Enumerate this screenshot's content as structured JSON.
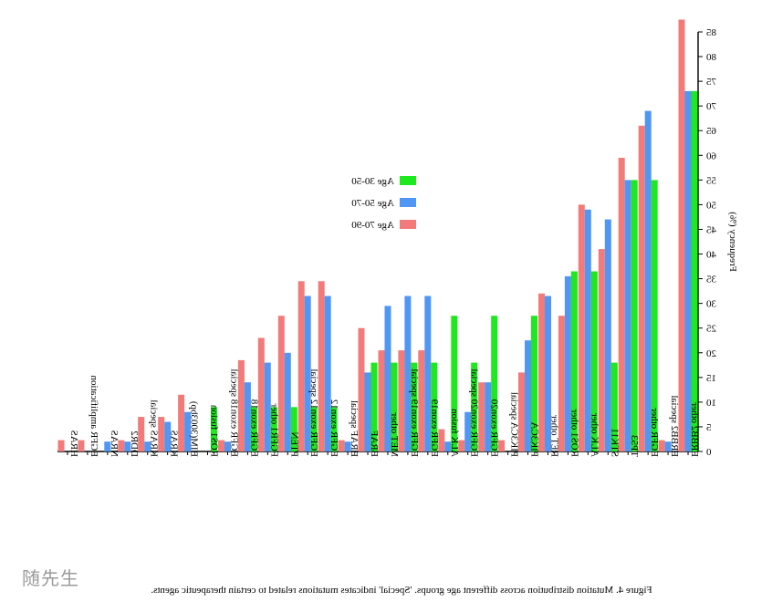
{
  "chart_data": {
    "type": "bar",
    "orientation": "mirrored",
    "caption": "Figure 4. Mutation distribution across different age groups. 'Special' indicates mutations related to certain therapeutic agents.",
    "ylabel": "Frequency (%)",
    "ylim": [
      0,
      85
    ],
    "yticks": [
      0,
      5,
      10,
      15,
      20,
      25,
      30,
      35,
      40,
      45,
      50,
      55,
      60,
      65,
      70,
      75,
      80,
      85
    ],
    "legend_position": "top-center",
    "grid": false,
    "categories": [
      "HRAS",
      "EGFR amplification",
      "NRAS",
      "DDR2",
      "KRAS special",
      "KRAS",
      "BIM(3003bp)",
      "ROS1 fusion",
      "EGFR exon18 special",
      "EGFR exon18",
      "FGFR1 other",
      "PTEN",
      "EGFR exon12 special",
      "EGFR exon12",
      "BRAF special",
      "BRAF",
      "MET other",
      "EGFR exon19 special",
      "EGFR exon19",
      "ALK fusion",
      "EGFR exon20 special",
      "EGFR exon20",
      "PIK3CA special",
      "PIK3CA",
      "RET other",
      "ROS1 other",
      "ALK other",
      "STK11",
      "TP53",
      "EGFR other",
      "ERBB2 special",
      "ERBB2 other"
    ],
    "series": [
      {
        "name": "Age 30-50",
        "color": "#1ee81e",
        "values": [
          0,
          0,
          0,
          0,
          0,
          0,
          0,
          9,
          0,
          9,
          9,
          9,
          9,
          9,
          0,
          18,
          18,
          18,
          18,
          27.5,
          18,
          27.5,
          0,
          27.5,
          0,
          36.5,
          36.5,
          18,
          55,
          55,
          0,
          73
        ]
      },
      {
        "name": "Age 50-70",
        "color": "#4f96f5",
        "values": [
          0,
          0,
          2,
          2,
          2,
          6,
          8,
          0,
          2,
          14,
          18,
          20,
          31.5,
          31.5,
          2,
          16,
          29.5,
          31.5,
          31.5,
          2,
          8,
          14,
          0,
          22.5,
          31.5,
          35.5,
          49,
          47,
          55,
          69,
          2,
          73
        ]
      },
      {
        "name": "Age 70-90",
        "color": "#f27a7a",
        "values": [
          2.3,
          2.3,
          0,
          2.3,
          7,
          7,
          11.5,
          0,
          2.3,
          18.5,
          23,
          27.5,
          34.5,
          34.5,
          2.3,
          25,
          20.5,
          20.5,
          20.5,
          4.5,
          2.3,
          14,
          2.3,
          16,
          32,
          27.5,
          50,
          41,
          59.5,
          66,
          2.3,
          87.5
        ]
      }
    ]
  },
  "watermark": "随先生"
}
